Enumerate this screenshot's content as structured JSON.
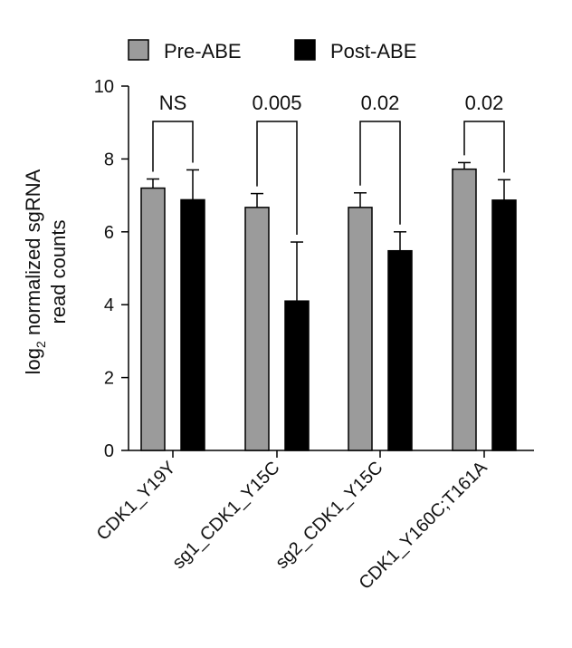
{
  "chart_data": {
    "type": "bar",
    "categories": [
      "CDK1_Y19Y",
      "sg1_CDK1_Y15C",
      "sg2_CDK1_Y15C",
      "CDK1_Y160C;T161A"
    ],
    "series": [
      {
        "name": "Pre-ABE",
        "color": "#9b9b9b",
        "values": [
          7.2,
          6.67,
          6.67,
          7.72
        ],
        "errors": [
          0.25,
          0.38,
          0.4,
          0.18
        ]
      },
      {
        "name": "Post-ABE",
        "color": "#000000",
        "values": [
          6.88,
          4.1,
          5.48,
          6.87
        ],
        "errors": [
          0.82,
          1.62,
          0.52,
          0.56
        ]
      }
    ],
    "significance": [
      "NS",
      "0.005",
      "0.02",
      "0.02"
    ],
    "ylabel_main": "log",
    "ylabel_sub": "2",
    "ylabel_rest": " normalized sgRNA",
    "ylabel_line2": "read counts",
    "ylim": [
      0,
      10
    ],
    "yticks": [
      "0",
      "2",
      "4",
      "6",
      "8",
      "10"
    ],
    "legend_position": "top-center",
    "grid": false
  }
}
